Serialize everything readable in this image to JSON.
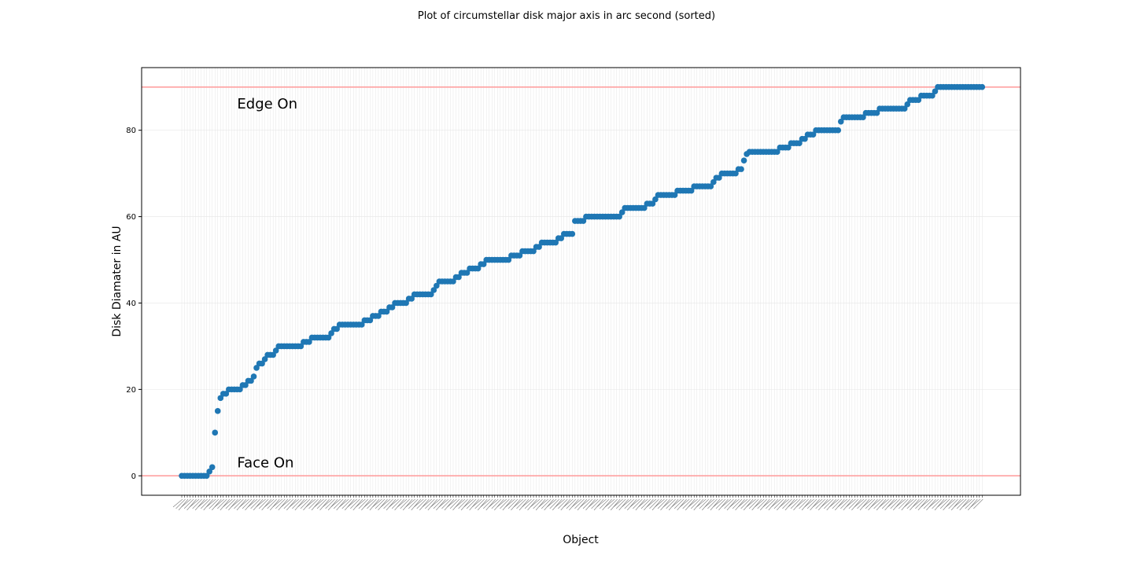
{
  "chart_data": {
    "type": "scatter",
    "title": "Plot of circumstellar disk major axis in arc second (sorted)",
    "xlabel": "Object",
    "ylabel": "Disk Diamater in AU",
    "ylim": [
      -4.5,
      94.5
    ],
    "yticks": [
      0,
      20,
      40,
      60,
      80
    ],
    "grid": true,
    "num_categories": 290,
    "reference_lines": [
      {
        "y": 90,
        "color": "#ff9999"
      },
      {
        "y": 0,
        "color": "#ff9999"
      }
    ],
    "annotations": [
      {
        "text": "Edge On",
        "x": 20,
        "y": 85
      },
      {
        "text": "Face On",
        "x": 20,
        "y": 2
      }
    ],
    "marker_color": "#1f77b4",
    "values": [
      0,
      0,
      0,
      0,
      0,
      0,
      0,
      0,
      0,
      0,
      1,
      2,
      10,
      15,
      18,
      19,
      19,
      20,
      20,
      20,
      20,
      20,
      21,
      21,
      22,
      22,
      23,
      25,
      26,
      26,
      27,
      28,
      28,
      28,
      29,
      30,
      30,
      30,
      30,
      30,
      30,
      30,
      30,
      30,
      31,
      31,
      31,
      32,
      32,
      32,
      32,
      32,
      32,
      32,
      33,
      34,
      34,
      35,
      35,
      35,
      35,
      35,
      35,
      35,
      35,
      35,
      36,
      36,
      36,
      37,
      37,
      37,
      38,
      38,
      38,
      39,
      39,
      40,
      40,
      40,
      40,
      40,
      41,
      41,
      42,
      42,
      42,
      42,
      42,
      42,
      42,
      43,
      44,
      45,
      45,
      45,
      45,
      45,
      45,
      46,
      46,
      47,
      47,
      47,
      48,
      48,
      48,
      48,
      49,
      49,
      50,
      50,
      50,
      50,
      50,
      50,
      50,
      50,
      50,
      51,
      51,
      51,
      51,
      52,
      52,
      52,
      52,
      52,
      53,
      53,
      54,
      54,
      54,
      54,
      54,
      54,
      55,
      55,
      56,
      56,
      56,
      56,
      59,
      59,
      59,
      59,
      60,
      60,
      60,
      60,
      60,
      60,
      60,
      60,
      60,
      60,
      60,
      60,
      60,
      61,
      62,
      62,
      62,
      62,
      62,
      62,
      62,
      62,
      63,
      63,
      63,
      64,
      65,
      65,
      65,
      65,
      65,
      65,
      65,
      66,
      66,
      66,
      66,
      66,
      66,
      67,
      67,
      67,
      67,
      67,
      67,
      67,
      68,
      69,
      69,
      70,
      70,
      70,
      70,
      70,
      70,
      71,
      71,
      73,
      74.5,
      75,
      75,
      75,
      75,
      75,
      75,
      75,
      75,
      75,
      75,
      75,
      76,
      76,
      76,
      76,
      77,
      77,
      77,
      77,
      78,
      78,
      79,
      79,
      79,
      80,
      80,
      80,
      80,
      80,
      80,
      80,
      80,
      80,
      82,
      83,
      83,
      83,
      83,
      83,
      83,
      83,
      83,
      84,
      84,
      84,
      84,
      84,
      85,
      85,
      85,
      85,
      85,
      85,
      85,
      85,
      85,
      85,
      86,
      87,
      87,
      87,
      87,
      88,
      88,
      88,
      88,
      88,
      89,
      90,
      90,
      90,
      90,
      90,
      90,
      90,
      90,
      90,
      90,
      90,
      90,
      90,
      90,
      90,
      90,
      90
    ]
  }
}
